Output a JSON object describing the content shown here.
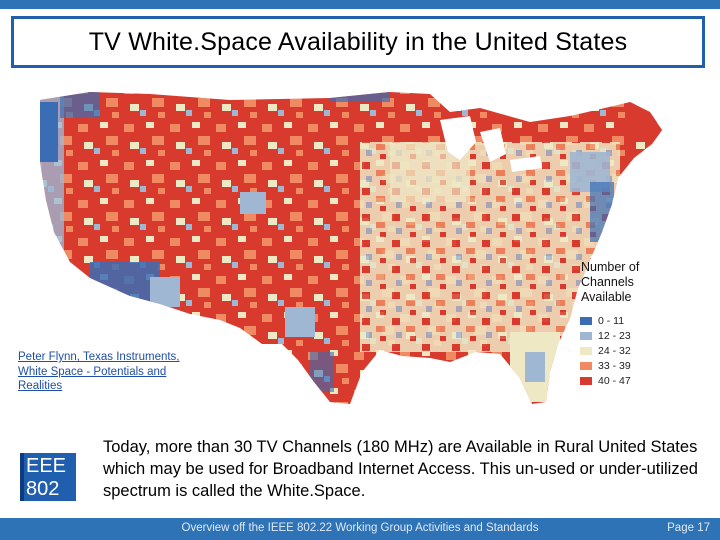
{
  "slide": {
    "title": "TV White.Space Availability in the United States",
    "citation": "Peter Flynn, Texas Instruments, White Space - Potentials and Realities",
    "body": "Today, more than 30 TV Channels (180 MHz) are Available in Rural United States which may be used for Broadband Internet Access. This un-used or under-utilized spectrum is called the White.Space.",
    "logo_line1": "EEE",
    "logo_line2": "802",
    "footer_text": "Overview off the IEEE 802.22 Working Group Activities and Standards",
    "page_label": "Page 17"
  },
  "map": {
    "legend_title_lines": [
      "Number of",
      "Channels",
      "Available"
    ],
    "legend": [
      {
        "label": "0 - 11",
        "color": "#3b6db5"
      },
      {
        "label": "12 - 23",
        "color": "#9fb7d3"
      },
      {
        "label": "24 - 32",
        "color": "#efe8c4"
      },
      {
        "label": "33 - 39",
        "color": "#ef8a62"
      },
      {
        "label": "40 - 47",
        "color": "#d83a2e"
      }
    ]
  }
}
